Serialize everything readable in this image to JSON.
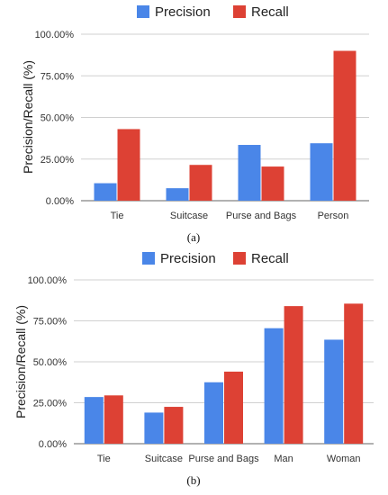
{
  "colors": {
    "precision": "#4a86e8",
    "recall": "#dd4134",
    "grid": "#d0d0d0"
  },
  "chart_data": [
    {
      "type": "bar",
      "caption": "(a)",
      "ylabel": "Precision/Recall (%)",
      "ylim": [
        0,
        100
      ],
      "yticks": [
        "0.00%",
        "25.00%",
        "50.00%",
        "75.00%",
        "100.00%"
      ],
      "legend": "top",
      "categories": [
        "Tie",
        "Suitcase",
        "Purse and Bags",
        "Person"
      ],
      "series": [
        {
          "name": "Precision",
          "values": [
            10.5,
            7.5,
            33.5,
            34.5
          ]
        },
        {
          "name": "Recall",
          "values": [
            43,
            21.5,
            20.5,
            90
          ]
        }
      ]
    },
    {
      "type": "bar",
      "caption": "(b)",
      "ylabel": "Precision/Recall (%)",
      "ylim": [
        0,
        100
      ],
      "yticks": [
        "0.00%",
        "25.00%",
        "50.00%",
        "75.00%",
        "100.00%"
      ],
      "legend": "top",
      "categories": [
        "Tie",
        "Suitcase",
        "Purse and Bags",
        "Man",
        "Woman"
      ],
      "series": [
        {
          "name": "Precision",
          "values": [
            28.5,
            19,
            37.5,
            70.5,
            63.5
          ]
        },
        {
          "name": "Recall",
          "values": [
            29.5,
            22.5,
            44,
            84,
            85.5
          ]
        }
      ]
    }
  ]
}
